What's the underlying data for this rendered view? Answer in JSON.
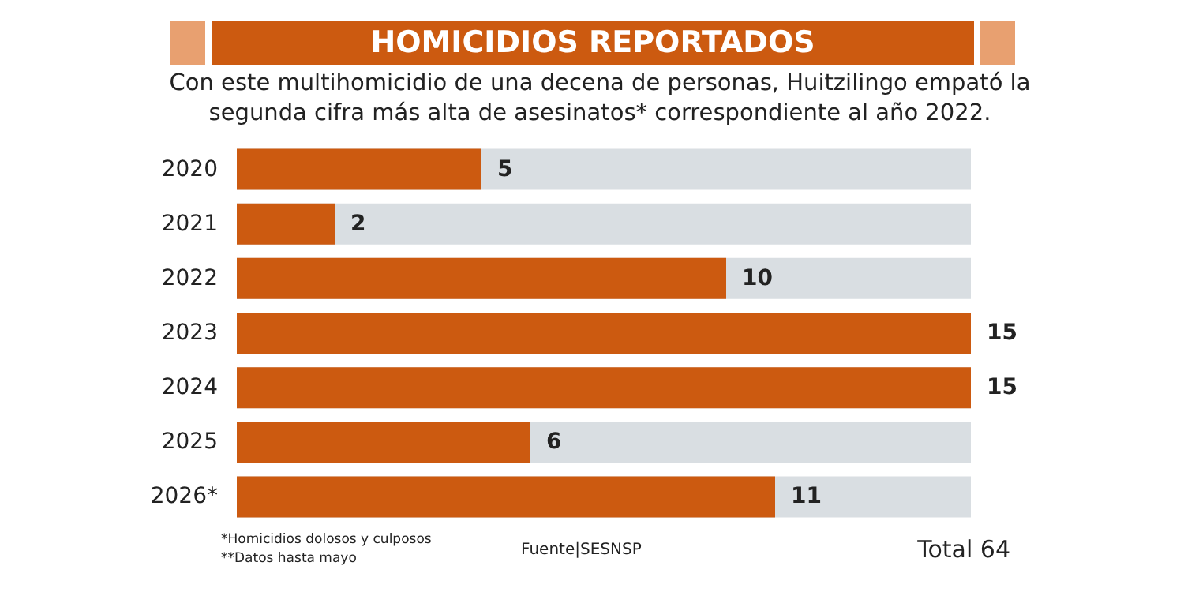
{
  "chart_data": {
    "type": "bar",
    "orientation": "horizontal",
    "title": "HOMICIDIOS REPORTADOS",
    "subtitle": "Con este multihomicidio de una decena de personas, Huitzilingo empató la segunda cifra más alta de asesinatos* correspondiente al año 2022.",
    "categories": [
      "2020",
      "2021",
      "2022",
      "2023",
      "2024",
      "2025",
      "2026*"
    ],
    "values": [
      5,
      2,
      10,
      15,
      15,
      6,
      11
    ],
    "color": "#cc5a10",
    "data_labels": true,
    "tick_labels": "y",
    "annotations": [
      "*Homicidios dolosos y culposos",
      "**Datos hasta mayo",
      "Fuente|SESNSP",
      "Total 64"
    ]
  }
}
